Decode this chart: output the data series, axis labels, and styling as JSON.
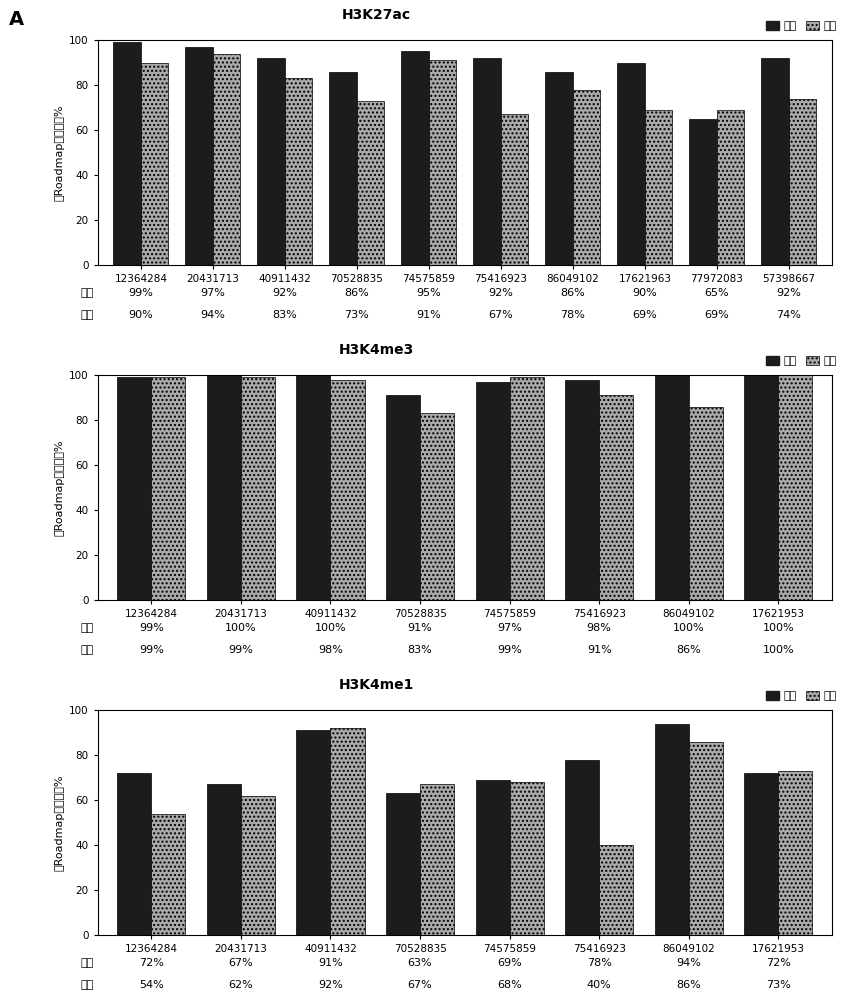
{
  "charts": [
    {
      "title": "H3K27ac",
      "categories": [
        "12364284",
        "20431713",
        "40911432",
        "70528835",
        "74575859",
        "75416923",
        "86049102",
        "17621963",
        "77972083",
        "57398667"
      ],
      "normal": [
        99,
        97,
        92,
        86,
        95,
        92,
        86,
        90,
        65,
        92
      ],
      "tumor": [
        90,
        94,
        83,
        73,
        91,
        67,
        78,
        69,
        69,
        74
      ],
      "normal_labels": [
        "99%",
        "97%",
        "92%",
        "86%",
        "95%",
        "92%",
        "86%",
        "90%",
        "65%",
        "92%"
      ],
      "tumor_labels": [
        "90%",
        "94%",
        "83%",
        "73%",
        "91%",
        "67%",
        "78%",
        "69%",
        "69%",
        "74%"
      ]
    },
    {
      "title": "H3K4me3",
      "categories": [
        "12364284",
        "20431713",
        "40911432",
        "70528835",
        "74575859",
        "75416923",
        "86049102",
        "17621953"
      ],
      "normal": [
        99,
        100,
        100,
        91,
        97,
        98,
        100,
        100
      ],
      "tumor": [
        99,
        99,
        98,
        83,
        99,
        91,
        86,
        100
      ],
      "normal_labels": [
        "99%",
        "100%",
        "100%",
        "91%",
        "97%",
        "98%",
        "100%",
        "100%"
      ],
      "tumor_labels": [
        "99%",
        "99%",
        "98%",
        "83%",
        "99%",
        "91%",
        "86%",
        "100%"
      ]
    },
    {
      "title": "H3K4me1",
      "categories": [
        "12364284",
        "20431713",
        "40911432",
        "70528835",
        "74575859",
        "75416923",
        "86049102",
        "17621953"
      ],
      "normal": [
        72,
        67,
        91,
        63,
        69,
        78,
        94,
        72
      ],
      "tumor": [
        54,
        62,
        92,
        67,
        68,
        40,
        86,
        73
      ],
      "normal_labels": [
        "72%",
        "67%",
        "91%",
        "63%",
        "69%",
        "78%",
        "94%",
        "72%"
      ],
      "tumor_labels": [
        "54%",
        "62%",
        "92%",
        "67%",
        "68%",
        "40%",
        "86%",
        "73%"
      ]
    }
  ],
  "ylabel": "与Roadmap重叠的峰%",
  "legend_normal": "正常",
  "legend_tumor": "肿瘤",
  "row_label_normal": "正常",
  "row_label_tumor": "肿瘤",
  "panel_label": "A",
  "normal_color": "#1c1c1c",
  "tumor_color": "#aaaaaa",
  "bar_width": 0.38,
  "ylim": [
    0,
    100
  ],
  "yticks": [
    0,
    20,
    40,
    60,
    80,
    100
  ],
  "title_fontsize": 10,
  "axis_fontsize": 8,
  "tick_fontsize": 7.5,
  "label_fontsize": 8
}
